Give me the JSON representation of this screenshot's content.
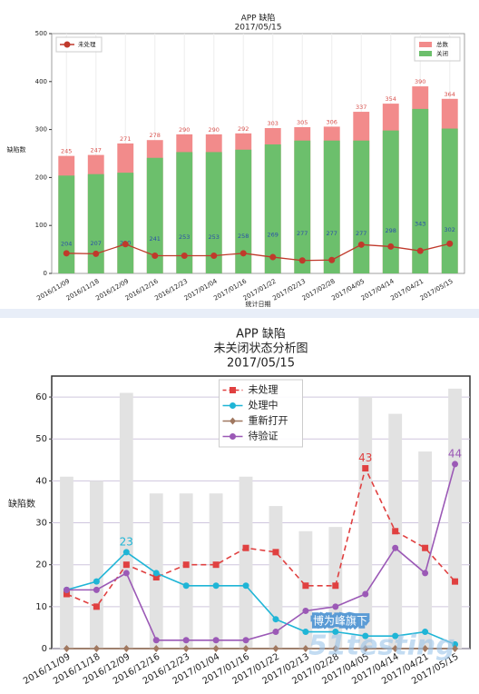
{
  "chart_data": [
    {
      "type": "bar",
      "title": [
        "APP 缺陷",
        "2017/05/15"
      ],
      "ylabel": "缺陷数",
      "xlabel": "统计日期",
      "categories": [
        "2016/11/09",
        "2016/11/18",
        "2016/12/09",
        "2016/12/16",
        "2016/12/23",
        "2017/01/04",
        "2017/01/16",
        "2017/01/22",
        "2017/02/13",
        "2017/02/28",
        "2017/04/05",
        "2017/04/14",
        "2017/04/21",
        "2017/05/15"
      ],
      "ylim": [
        0,
        500
      ],
      "yticks": [
        0,
        100,
        200,
        300,
        400,
        500
      ],
      "grid": "x",
      "legend": {
        "bar": "upper right",
        "line": "upper left"
      },
      "series": [
        {
          "name": "总数",
          "kind": "bar",
          "color": "#f28b8b",
          "labels": true,
          "label_color": "#d9534f",
          "values": [
            245,
            247,
            271,
            278,
            290,
            290,
            292,
            303,
            305,
            306,
            337,
            354,
            390,
            364
          ]
        },
        {
          "name": "关闭",
          "kind": "bar",
          "color": "#6cbf6c",
          "labels": true,
          "label_color": "#2a4fa8",
          "values": [
            204,
            207,
            210,
            241,
            253,
            253,
            258,
            269,
            277,
            277,
            277,
            298,
            343,
            302
          ]
        },
        {
          "name": "未处理",
          "kind": "line",
          "color": "#c0392b",
          "marker": "circle",
          "values": [
            42,
            41,
            61,
            37,
            37,
            37,
            42,
            34,
            27,
            28,
            60,
            56,
            47,
            62
          ]
        }
      ]
    },
    {
      "type": "bar",
      "title": [
        "APP 缺陷",
        "未关闭状态分析图",
        "2017/05/15"
      ],
      "ylabel": "缺陷数",
      "categories": [
        "2016/11/09",
        "2016/11/18",
        "2016/12/09",
        "2016/12/16",
        "2016/12/23",
        "2017/01/04",
        "2017/01/16",
        "2017/01/22",
        "2017/02/13",
        "2017/02/28",
        "2017/04/05",
        "2017/04/14",
        "2017/04/21",
        "2017/05/15"
      ],
      "ylim": [
        0,
        65
      ],
      "yticks": [
        0,
        10,
        20,
        30,
        40,
        50,
        60
      ],
      "grid": "y",
      "legend": {
        "line": "upper center"
      },
      "annotations": [
        "博为峰旗下",
        "51testing"
      ],
      "series": [
        {
          "kind": "bar",
          "color": "#e2e2e2",
          "values": [
            41,
            40,
            61,
            37,
            37,
            37,
            41,
            34,
            28,
            29,
            60,
            56,
            47,
            62
          ]
        },
        {
          "name": "未处理",
          "kind": "line",
          "color": "#e04040",
          "marker": "square",
          "dashed": true,
          "values": [
            13,
            10,
            20,
            17,
            20,
            20,
            24,
            23,
            15,
            15,
            43,
            28,
            24,
            16
          ],
          "value_labels": [
            null,
            null,
            null,
            null,
            null,
            null,
            null,
            null,
            null,
            null,
            "43",
            null,
            null,
            null
          ]
        },
        {
          "name": "处理中",
          "kind": "line",
          "color": "#1fb5d6",
          "marker": "circle",
          "values": [
            14,
            16,
            23,
            18,
            15,
            15,
            15,
            7,
            4,
            4,
            3,
            3,
            4,
            1
          ],
          "value_labels": [
            null,
            null,
            "23",
            null,
            null,
            null,
            null,
            null,
            null,
            null,
            null,
            null,
            null,
            null
          ]
        },
        {
          "name": "重新打开",
          "kind": "line",
          "color": "#a07860",
          "marker": "diamond",
          "values": [
            0,
            0,
            0,
            0,
            0,
            0,
            0,
            0,
            0,
            0,
            0,
            0,
            0,
            0
          ]
        },
        {
          "name": "待验证",
          "kind": "line",
          "color": "#9b59b6",
          "marker": "circle",
          "values": [
            14,
            14,
            18,
            2,
            2,
            2,
            2,
            4,
            9,
            10,
            13,
            24,
            18,
            44
          ],
          "value_labels": [
            null,
            null,
            null,
            null,
            null,
            null,
            null,
            null,
            null,
            null,
            null,
            null,
            null,
            "44"
          ]
        }
      ]
    }
  ]
}
